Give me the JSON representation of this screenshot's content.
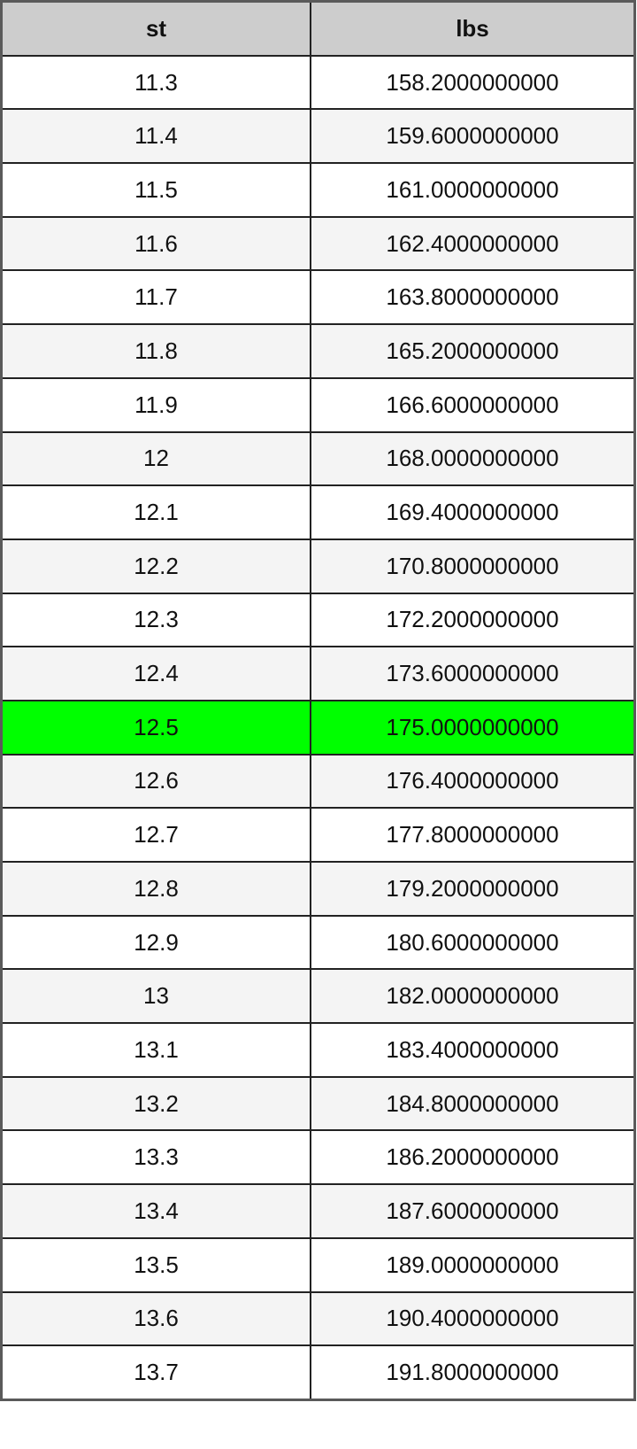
{
  "table": {
    "headers": [
      "st",
      "lbs"
    ],
    "highlight_color": "#00ff00",
    "highlighted_row": "12.5",
    "rows": [
      [
        "11.3",
        "158.2000000000"
      ],
      [
        "11.4",
        "159.6000000000"
      ],
      [
        "11.5",
        "161.0000000000"
      ],
      [
        "11.6",
        "162.4000000000"
      ],
      [
        "11.7",
        "163.8000000000"
      ],
      [
        "11.8",
        "165.2000000000"
      ],
      [
        "11.9",
        "166.6000000000"
      ],
      [
        "12",
        "168.0000000000"
      ],
      [
        "12.1",
        "169.4000000000"
      ],
      [
        "12.2",
        "170.8000000000"
      ],
      [
        "12.3",
        "172.2000000000"
      ],
      [
        "12.4",
        "173.6000000000"
      ],
      [
        "12.5",
        "175.0000000000"
      ],
      [
        "12.6",
        "176.4000000000"
      ],
      [
        "12.7",
        "177.8000000000"
      ],
      [
        "12.8",
        "179.2000000000"
      ],
      [
        "12.9",
        "180.6000000000"
      ],
      [
        "13",
        "182.0000000000"
      ],
      [
        "13.1",
        "183.4000000000"
      ],
      [
        "13.2",
        "184.8000000000"
      ],
      [
        "13.3",
        "186.2000000000"
      ],
      [
        "13.4",
        "187.6000000000"
      ],
      [
        "13.5",
        "189.0000000000"
      ],
      [
        "13.6",
        "190.4000000000"
      ],
      [
        "13.7",
        "191.8000000000"
      ]
    ]
  }
}
